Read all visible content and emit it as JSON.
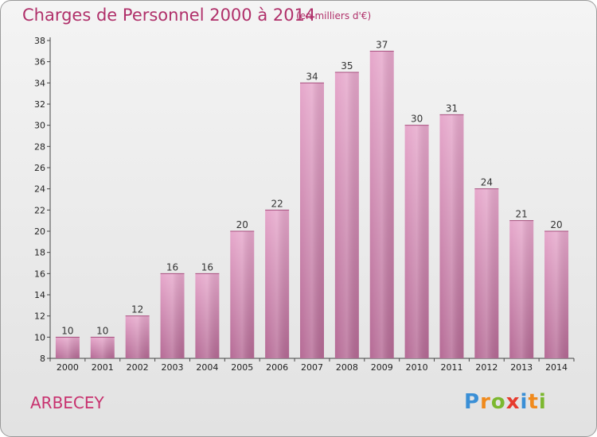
{
  "header": {
    "title": "Charges de Personnel 2000 à 2014",
    "subtitle": "(en milliers d'€)"
  },
  "commune": "ARBECEY",
  "logo": {
    "letters": [
      "P",
      "r",
      "o",
      "x",
      "i",
      "t",
      "i"
    ],
    "colors": [
      "#3a8fd6",
      "#f08a1c",
      "#7cb82f",
      "#e63b2e",
      "#3a8fd6",
      "#f08a1c",
      "#7cb82f"
    ]
  },
  "colors": {
    "bar_top": "#e6a7cb",
    "bar_bottom": "#b56a95",
    "accent": "#c8326f"
  },
  "chart_data": {
    "type": "bar",
    "categories": [
      "2000",
      "2001",
      "2002",
      "2003",
      "2004",
      "2005",
      "2006",
      "2007",
      "2008",
      "2009",
      "2010",
      "2011",
      "2012",
      "2013",
      "2014"
    ],
    "values": [
      10,
      10,
      12,
      16,
      16,
      20,
      22,
      34,
      35,
      37,
      30,
      31,
      24,
      21,
      20
    ],
    "title": "Charges de Personnel 2000 à 2014",
    "subtitle": "(en milliers d'€)",
    "ylim": [
      8,
      38
    ],
    "yticks": [
      8,
      10,
      12,
      14,
      16,
      18,
      20,
      22,
      24,
      26,
      28,
      30,
      32,
      34,
      36,
      38
    ],
    "grid": false,
    "data_labels": true
  }
}
